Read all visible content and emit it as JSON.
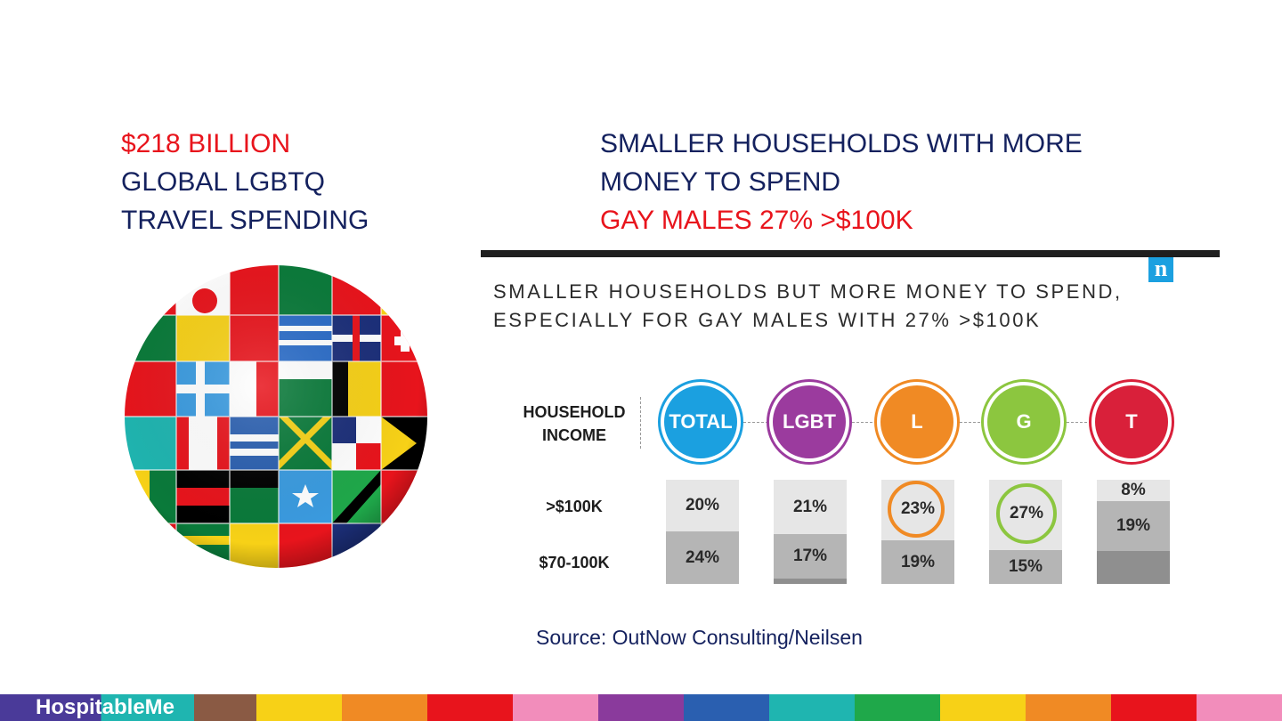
{
  "left_heading": {
    "line1": "$218 BILLION",
    "line2": "GLOBAL LGBTQ",
    "line3": "TRAVEL SPENDING"
  },
  "right_heading": {
    "line1": "SMALLER HOUSEHOLDS WITH MORE",
    "line2": "MONEY TO SPEND",
    "line3": "GAY MALES 27% >$100K"
  },
  "logo_letter": "n",
  "inner_title": {
    "line1": "SMALLER HOUSEHOLDS BUT MORE MONEY TO SPEND,",
    "line2": "ESPECIALLY FOR GAY MALES WITH 27% >$100K"
  },
  "household_label": {
    "line1": "HOUSEHOLD",
    "line2": "INCOME"
  },
  "groups": [
    {
      "label": "TOTAL",
      "color": "#1ba0e0"
    },
    {
      "label": "LGBT",
      "color": "#9b3b9e"
    },
    {
      "label": "L",
      "color": "#f08a24"
    },
    {
      "label": "G",
      "color": "#8cc63f"
    },
    {
      "label": "T",
      "color": "#d9203a"
    }
  ],
  "rows": {
    "r100": ">$100K",
    "r70": "$70-100K"
  },
  "columns": [
    {
      "top": "20%",
      "second": "24%"
    },
    {
      "top": "21%",
      "second": "17%"
    },
    {
      "top": "23%",
      "second": "19%"
    },
    {
      "top": "27%",
      "second": "15%"
    },
    {
      "top": "8%",
      "second": "19%"
    }
  ],
  "source": "Source: OutNow Consulting/Neilsen",
  "brand": "HospitableMe",
  "stripe_colors": [
    "#4a3a99",
    "#1fb5b0",
    "#8a5a44",
    "#f7d117",
    "#f08a24",
    "#e8141c",
    "#f28dbb",
    "#8a3a9c",
    "#2a5fb0",
    "#1fb5b0",
    "#1fa84a",
    "#f7d117",
    "#f08a24",
    "#e8141c",
    "#f28dbb"
  ]
}
